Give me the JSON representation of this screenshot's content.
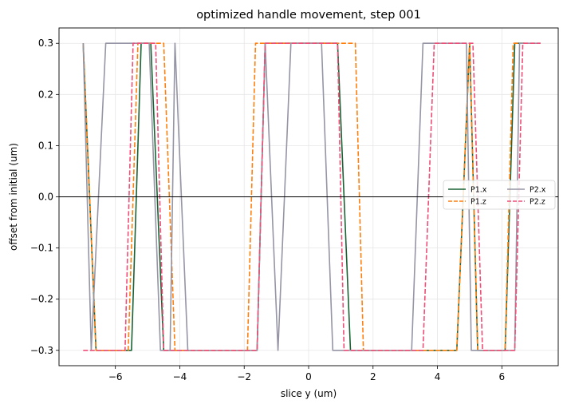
{
  "chart_data": {
    "type": "line",
    "title": "optimized handle movement, step 001",
    "xlabel": "slice y (um)",
    "ylabel": "offset from initial (um)",
    "xlim": [
      -7.75,
      7.75
    ],
    "ylim": [
      -0.33,
      0.33
    ],
    "xticks": [
      -6,
      -4,
      -2,
      0,
      2,
      4,
      6
    ],
    "yticks": [
      -0.3,
      -0.2,
      -0.1,
      0.0,
      0.1,
      0.2,
      0.3
    ],
    "xtick_labels": [
      "−6",
      "−4",
      "−2",
      "0",
      "2",
      "4",
      "6"
    ],
    "ytick_labels": [
      "−0.3",
      "−0.2",
      "−0.1",
      "0.0",
      "0.1",
      "0.2",
      "0.3"
    ],
    "grid": true,
    "reference_line_y": 0,
    "legend_position": "center-right",
    "series": [
      {
        "name": "P1.x",
        "color": "#1a6234",
        "dash": "solid",
        "x": [
          -7.0,
          -6.6,
          -5.5,
          -5.2,
          -4.9,
          -4.5,
          -1.6,
          -1.35,
          0.9,
          1.3,
          4.6,
          5.0,
          5.25,
          6.1,
          6.4,
          6.7
        ],
        "y": [
          0.3,
          -0.3,
          -0.3,
          0.3,
          0.3,
          -0.3,
          -0.3,
          0.3,
          0.3,
          -0.3,
          -0.3,
          0.3,
          -0.3,
          -0.3,
          0.3,
          0.3
        ]
      },
      {
        "name": "P1.z",
        "color": "#ff7f0e",
        "dash": "dashed",
        "x": [
          -7.0,
          -6.6,
          -5.6,
          -5.3,
          -4.5,
          -4.15,
          -1.9,
          -1.65,
          1.45,
          1.7,
          4.6,
          5.0,
          5.25,
          6.1,
          6.35,
          6.7
        ],
        "y": [
          0.3,
          -0.3,
          -0.3,
          0.3,
          0.3,
          -0.3,
          -0.3,
          0.3,
          0.3,
          -0.3,
          -0.3,
          0.3,
          -0.3,
          -0.3,
          0.3,
          0.3
        ]
      },
      {
        "name": "P2.x",
        "color": "#9595a5",
        "dash": "solid",
        "x": [
          -7.0,
          -6.75,
          -6.3,
          -5.3,
          -4.95,
          -4.6,
          -4.3,
          -4.15,
          -3.75,
          -1.6,
          -1.35,
          -0.95,
          -0.55,
          0.4,
          0.75,
          3.2,
          3.55,
          4.9,
          5.05,
          6.4,
          6.55,
          7.2
        ],
        "y": [
          0.3,
          -0.3,
          0.3,
          0.3,
          0.3,
          -0.3,
          -0.3,
          0.3,
          -0.3,
          -0.3,
          0.3,
          -0.3,
          0.3,
          0.3,
          -0.3,
          -0.3,
          0.3,
          0.3,
          -0.3,
          -0.3,
          0.3,
          0.3
        ]
      },
      {
        "name": "P2.z",
        "color": "#ee4e77",
        "dash": "dashed",
        "x": [
          -7.0,
          -6.6,
          -5.7,
          -5.45,
          -4.75,
          -4.5,
          -1.6,
          -1.35,
          0.9,
          1.1,
          3.55,
          3.9,
          5.1,
          5.4,
          6.4,
          6.65,
          7.2
        ],
        "y": [
          -0.3,
          -0.3,
          -0.3,
          0.3,
          0.3,
          -0.3,
          -0.3,
          0.3,
          0.3,
          -0.3,
          -0.3,
          0.3,
          0.3,
          -0.3,
          -0.3,
          0.3,
          0.3
        ]
      }
    ]
  }
}
